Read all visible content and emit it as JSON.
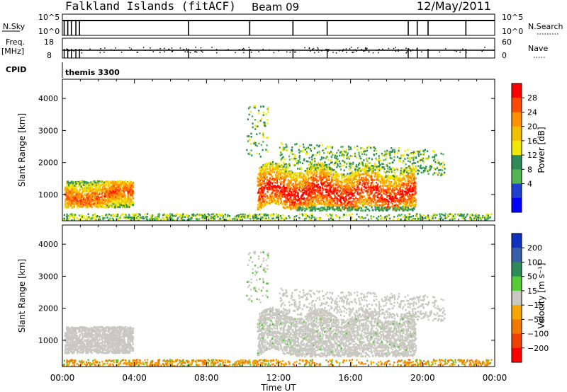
{
  "header": {
    "station": "Falkland Islands (fitACF)",
    "beam": "Beam 09",
    "date": "12/May/2011"
  },
  "panels": {
    "nsky": {
      "left_label": "N.Sky",
      "left_top": "10^5",
      "left_bottom": "10^0",
      "right_top": "10^5",
      "right_bottom": "10^0",
      "right_label": "N.Search"
    },
    "freq": {
      "left_label_1": "Freq.",
      "left_label_2": "[MHz]",
      "left_top": "18",
      "left_bottom": "8",
      "right_top": "60",
      "right_bottom": "0",
      "right_label": "Nave"
    },
    "cpid": {
      "label": "CPID",
      "value": "themis 3300"
    }
  },
  "axes": {
    "ylabel": "Slant Range [km]",
    "xlabel": "Time UT",
    "yticks": [
      1000,
      2000,
      3000,
      4000
    ],
    "xticks": [
      "00:00",
      "04:00",
      "08:00",
      "12:00",
      "16:00",
      "20:00",
      "00:00"
    ]
  },
  "colorbars": {
    "power": {
      "label": "Power [dB]",
      "ticks": [
        "28",
        "24",
        "20",
        "16",
        "12",
        "8",
        "4"
      ],
      "colors": [
        "#ff0000",
        "#ff4a00",
        "#ff9000",
        "#f0c000",
        "#f0e800",
        "#2e8b57",
        "#52b452",
        "#2040d0",
        "#0000ff"
      ]
    },
    "velocity": {
      "label": "Velocity [m s⁻¹]",
      "ticks": [
        "200",
        "100",
        "50",
        "15",
        "−15",
        "−50",
        "−100",
        "−200"
      ],
      "colors": [
        "#1030c0",
        "#3a5fa8",
        "#2e8b57",
        "#55cc33",
        "#c8c8c0",
        "#f5a500",
        "#f07800",
        "#f04000",
        "#ff0000"
      ]
    }
  },
  "chart_data": {
    "type": "heatmap",
    "xlim_hours": [
      0,
      24
    ],
    "ylim_km": [
      180,
      4600
    ],
    "scatter_regions": [
      {
        "name": "morning echoes",
        "t": [
          0.1,
          3.9
        ],
        "r": [
          620,
          1450
        ],
        "power_db": [
          4,
          28
        ],
        "velocity": "near-zero (grey)"
      },
      {
        "name": "afternoon echoes",
        "t": [
          10.8,
          19.6
        ],
        "r": [
          600,
          2200
        ],
        "power_db": [
          4,
          30
        ],
        "velocity": "near-zero (grey)"
      },
      {
        "name": "afternoon upper band",
        "t": [
          12.0,
          21.2
        ],
        "r": [
          1900,
          2800
        ],
        "power_db": [
          4,
          12
        ],
        "velocity": "near-zero (grey)"
      },
      {
        "name": "ground scatter band",
        "t": [
          0,
          23.8
        ],
        "r": [
          180,
          420
        ],
        "power_db": [
          4,
          12
        ],
        "velocity": "-50 to -15 (orange)"
      }
    ]
  }
}
